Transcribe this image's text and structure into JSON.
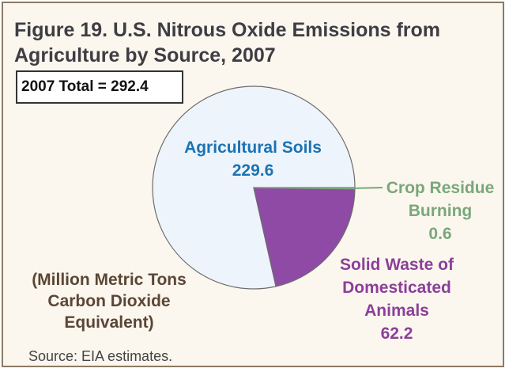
{
  "chart_data": {
    "type": "pie",
    "title_lines": [
      "Figure 19.  U.S. Nitrous Oxide Emissions from",
      "Agriculture by Source, 2007"
    ],
    "total_label": "2007 Total = 292.4",
    "units_lines": [
      "(Million Metric Tons",
      "Carbon Dioxide",
      "Equivalent)"
    ],
    "source": "Source: EIA estimates.",
    "slices": [
      {
        "name_lines": [
          "Agricultural Soils"
        ],
        "value": 229.6,
        "value_label": "229.6",
        "color": "#eef4fb"
      },
      {
        "name_lines": [
          "Solid Waste of",
          "Domesticated",
          "Animals"
        ],
        "value": 62.2,
        "value_label": "62.2",
        "color": "#8e4aa5"
      },
      {
        "name_lines": [
          "Crop Residue",
          "Burning"
        ],
        "value": 0.6,
        "value_label": "0.6",
        "color": "#7aa77a"
      }
    ],
    "colors": {
      "soils_label": "#1a73b3",
      "waste_label": "#8b3f9a",
      "crop_label": "#7aa77a",
      "frame_border": "#8c7a63",
      "background": "#fbf7ee"
    }
  }
}
